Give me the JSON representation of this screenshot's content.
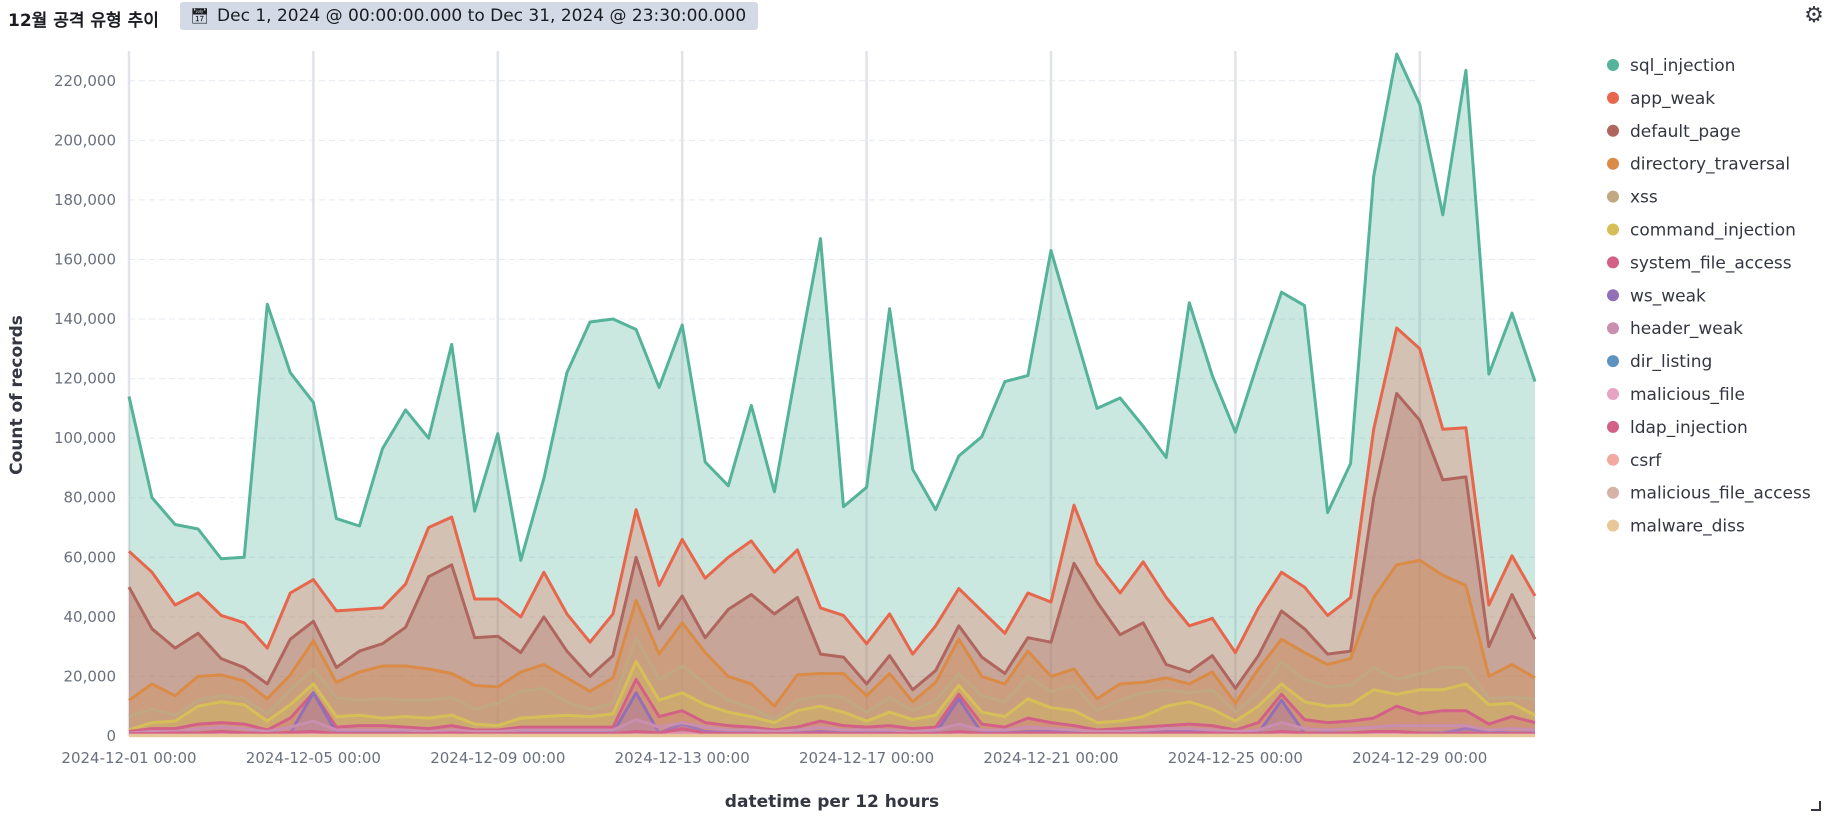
{
  "header": {
    "title": "12월 공격 유형 추이",
    "time_range": "Dec 1, 2024 @ 00:00:00.000 to Dec 31, 2024 @ 23:30:00.000",
    "calendar_icon": "calendar-icon",
    "settings_icon": "gear-icon"
  },
  "chart_data": {
    "type": "area",
    "stacked": false,
    "title": "",
    "xlabel": "datetime per 12 hours",
    "ylabel": "Count of records",
    "ylim": [
      0,
      230000
    ],
    "y_ticks": [
      "0",
      "20,000",
      "40,000",
      "60,000",
      "80,000",
      "100,000",
      "120,000",
      "140,000",
      "160,000",
      "180,000",
      "200,000",
      "220,000"
    ],
    "x_tick_labels": [
      "2024-12-01 00:00",
      "2024-12-05 00:00",
      "2024-12-09 00:00",
      "2024-12-13 00:00",
      "2024-12-17 00:00",
      "2024-12-21 00:00",
      "2024-12-25 00:00",
      "2024-12-29 00:00"
    ],
    "x_tick_index": [
      0,
      8,
      16,
      24,
      32,
      40,
      48,
      56
    ],
    "grid": true,
    "legend_position": "right",
    "series": [
      {
        "name": "sql_injection",
        "color": "#54b399",
        "values": [
          114000,
          80000,
          71000,
          69500,
          59500,
          60000,
          145000,
          122000,
          112000,
          73000,
          70500,
          96500,
          109500,
          100000,
          131500,
          75500,
          101500,
          59000,
          86500,
          122000,
          139000,
          140000,
          136500,
          117000,
          138000,
          92000,
          84000,
          111000,
          82000,
          125000,
          167000,
          77000,
          83500,
          143500,
          89500,
          76000,
          94000,
          100500,
          119000,
          121000,
          163000,
          136500,
          110000,
          113500,
          104000,
          93500,
          145500,
          121000,
          102000,
          126000,
          149000,
          144500,
          75000,
          91500,
          188000,
          229000,
          212000,
          175000,
          223500,
          121500,
          142000,
          119000
        ]
      },
      {
        "name": "app_weak",
        "color": "#e7664c",
        "values": [
          62000,
          55000,
          44000,
          48000,
          40500,
          38000,
          29500,
          48000,
          52500,
          42000,
          42500,
          43000,
          51000,
          70000,
          73500,
          46000,
          46000,
          40000,
          55000,
          41000,
          31500,
          41000,
          76000,
          50500,
          66000,
          53000,
          60000,
          65500,
          55000,
          62500,
          43000,
          40500,
          31000,
          41000,
          27500,
          37000,
          49500,
          42000,
          34500,
          48000,
          45000,
          77500,
          58000,
          48000,
          58500,
          46500,
          37000,
          39500,
          28000,
          43000,
          55000,
          50000,
          40500,
          46500,
          103000,
          137000,
          130000,
          103000,
          103500,
          44000,
          60500,
          47000
        ]
      },
      {
        "name": "default_page",
        "color": "#b0665e",
        "values": [
          50000,
          36000,
          29500,
          34500,
          26000,
          23000,
          17500,
          32500,
          38500,
          23000,
          28500,
          31000,
          36500,
          53500,
          57500,
          33000,
          33500,
          28000,
          40000,
          28500,
          20000,
          27000,
          60000,
          36000,
          47000,
          33000,
          42500,
          47500,
          41000,
          46500,
          27500,
          26500,
          17500,
          27000,
          15500,
          22000,
          37000,
          26500,
          21000,
          33000,
          31500,
          58000,
          45000,
          34000,
          38000,
          24000,
          21500,
          27000,
          16000,
          27000,
          42000,
          36000,
          27500,
          28500,
          80000,
          115000,
          106000,
          86000,
          87000,
          30000,
          47500,
          32500
        ]
      },
      {
        "name": "directory_traversal",
        "color": "#da8b45",
        "values": [
          12000,
          17500,
          13500,
          20000,
          20500,
          18500,
          12500,
          20500,
          32000,
          18000,
          21500,
          23500,
          23500,
          22500,
          21000,
          17000,
          16500,
          21500,
          24000,
          19500,
          15000,
          19500,
          45500,
          27500,
          38000,
          28000,
          20000,
          17500,
          10000,
          20500,
          21000,
          21000,
          13500,
          21000,
          11500,
          18000,
          32500,
          20000,
          17500,
          28500,
          20000,
          22500,
          12500,
          17500,
          18000,
          19500,
          17500,
          21500,
          11000,
          22500,
          32500,
          28000,
          24000,
          26000,
          46500,
          57500,
          59000,
          54000,
          50500,
          20000,
          24000,
          19500
        ]
      },
      {
        "name": "xss",
        "color": "#c0a882",
        "values": [
          6500,
          9000,
          7000,
          12000,
          13500,
          12500,
          7500,
          15500,
          22500,
          13000,
          12000,
          12500,
          12000,
          12000,
          13000,
          9000,
          11000,
          15000,
          16000,
          11500,
          9000,
          11000,
          33000,
          19000,
          23500,
          17500,
          12000,
          9500,
          5500,
          12000,
          13500,
          13000,
          8000,
          13000,
          8500,
          12000,
          21000,
          13500,
          11500,
          20000,
          15000,
          17000,
          8500,
          12000,
          14500,
          15500,
          14500,
          15500,
          8000,
          14500,
          25000,
          19000,
          16500,
          17000,
          23000,
          19000,
          21000,
          23000,
          23000,
          12500,
          13000,
          12500
        ]
      },
      {
        "name": "command_injection",
        "color": "#d6bf57",
        "values": [
          2000,
          4500,
          5000,
          10000,
          11500,
          10500,
          5000,
          10500,
          17500,
          6500,
          7000,
          6000,
          6500,
          6000,
          7000,
          4000,
          3500,
          6000,
          6500,
          7000,
          6500,
          7500,
          25000,
          12000,
          14500,
          10500,
          8000,
          6500,
          4500,
          8500,
          10000,
          8000,
          5000,
          8000,
          5500,
          7000,
          17000,
          8000,
          6500,
          12500,
          9500,
          8500,
          4500,
          5000,
          6500,
          10000,
          11500,
          9000,
          5000,
          10000,
          17500,
          11500,
          10000,
          10500,
          15500,
          14000,
          15500,
          15500,
          17500,
          10500,
          11000,
          7000
        ]
      },
      {
        "name": "system_file_access",
        "color": "#d36086",
        "values": [
          1500,
          2500,
          2500,
          4000,
          4500,
          4000,
          2000,
          6000,
          14500,
          3000,
          3500,
          3500,
          3000,
          2500,
          3500,
          2000,
          2000,
          3000,
          3000,
          3000,
          3000,
          3000,
          19000,
          6500,
          8500,
          4500,
          3500,
          3000,
          2000,
          3000,
          5000,
          3500,
          3000,
          3500,
          2500,
          3000,
          14000,
          4000,
          3000,
          6000,
          4500,
          3500,
          2000,
          2500,
          3000,
          3500,
          4000,
          3500,
          2000,
          4500,
          14000,
          5500,
          4500,
          5000,
          6000,
          10000,
          7500,
          8500,
          8500,
          4000,
          6500,
          4500
        ]
      },
      {
        "name": "ws_weak",
        "color": "#9170b8",
        "values": [
          500,
          500,
          500,
          1000,
          1500,
          1000,
          1000,
          1000,
          14500,
          1000,
          1000,
          1000,
          1000,
          1000,
          1500,
          1000,
          1000,
          1000,
          1000,
          1000,
          1000,
          1000,
          14500,
          1000,
          4000,
          1500,
          1000,
          1000,
          1000,
          1000,
          1500,
          1000,
          1000,
          1500,
          1000,
          1000,
          12500,
          1000,
          1000,
          1500,
          1500,
          1500,
          1000,
          1000,
          1000,
          1500,
          1500,
          1500,
          1000,
          1000,
          12000,
          1000,
          1000,
          1000,
          1000,
          1000,
          1000,
          1000,
          2500,
          1500,
          1000,
          1000
        ]
      },
      {
        "name": "header_weak",
        "color": "#ca8eae",
        "values": [
          1000,
          1500,
          1500,
          2500,
          3000,
          2500,
          1500,
          3000,
          5000,
          2000,
          2000,
          2000,
          2000,
          1500,
          2000,
          1500,
          1500,
          2000,
          2000,
          2000,
          2000,
          2000,
          5500,
          3000,
          4500,
          3000,
          2000,
          2000,
          1500,
          2000,
          3000,
          2000,
          2000,
          2000,
          1500,
          2000,
          4000,
          2000,
          2000,
          3000,
          2500,
          2000,
          1500,
          1500,
          2000,
          2500,
          2500,
          2000,
          1500,
          2000,
          4500,
          2500,
          2000,
          2500,
          3000,
          3500,
          3500,
          3500,
          3500,
          2000,
          2500,
          2000
        ]
      },
      {
        "name": "dir_listing",
        "color": "#6092c0",
        "values": [
          300,
          300,
          300,
          300,
          300,
          300,
          300,
          300,
          500,
          300,
          300,
          300,
          300,
          300,
          300,
          300,
          300,
          300,
          300,
          300,
          300,
          300,
          500,
          300,
          300,
          300,
          300,
          300,
          300,
          300,
          300,
          300,
          300,
          300,
          300,
          300,
          500,
          300,
          300,
          300,
          300,
          300,
          300,
          300,
          300,
          300,
          300,
          300,
          300,
          300,
          500,
          300,
          300,
          300,
          300,
          300,
          300,
          300,
          300,
          300,
          300,
          300
        ]
      },
      {
        "name": "malicious_file",
        "color": "#e7a4c1",
        "values": [
          500,
          500,
          500,
          500,
          500,
          500,
          500,
          500,
          1000,
          500,
          500,
          500,
          500,
          500,
          500,
          500,
          500,
          500,
          500,
          500,
          500,
          500,
          1000,
          500,
          1000,
          500,
          500,
          500,
          500,
          500,
          500,
          500,
          500,
          500,
          500,
          500,
          1000,
          500,
          500,
          500,
          500,
          500,
          500,
          500,
          500,
          500,
          500,
          500,
          500,
          500,
          1000,
          500,
          500,
          500,
          500,
          500,
          500,
          500,
          500,
          500,
          500,
          500
        ]
      },
      {
        "name": "ldap_injection",
        "color": "#d36086",
        "values": [
          800,
          800,
          1000,
          1000,
          1500,
          1000,
          800,
          1200,
          1500,
          800,
          800,
          800,
          800,
          800,
          1000,
          800,
          800,
          800,
          800,
          800,
          800,
          800,
          1500,
          1000,
          2500,
          1000,
          800,
          800,
          800,
          800,
          1000,
          800,
          800,
          800,
          800,
          800,
          1500,
          800,
          800,
          1000,
          1000,
          800,
          800,
          800,
          800,
          1000,
          1000,
          1000,
          800,
          800,
          1500,
          1000,
          800,
          1000,
          1500,
          1500,
          1000,
          800,
          1000,
          800,
          800,
          800
        ]
      },
      {
        "name": "csrf",
        "color": "#f1a9a0",
        "values": [
          300,
          300,
          300,
          300,
          300,
          300,
          300,
          300,
          300,
          300,
          300,
          300,
          300,
          300,
          300,
          300,
          300,
          300,
          300,
          300,
          300,
          300,
          300,
          300,
          300,
          300,
          300,
          300,
          300,
          300,
          300,
          300,
          300,
          300,
          300,
          300,
          300,
          300,
          300,
          300,
          300,
          300,
          300,
          300,
          300,
          300,
          300,
          300,
          300,
          300,
          300,
          300,
          300,
          300,
          300,
          300,
          300,
          300,
          300,
          300,
          300,
          300
        ]
      },
      {
        "name": "malicious_file_access",
        "color": "#d5b1a6",
        "values": [
          200,
          200,
          200,
          200,
          200,
          200,
          200,
          200,
          200,
          200,
          200,
          200,
          200,
          200,
          200,
          200,
          200,
          200,
          200,
          200,
          200,
          200,
          200,
          200,
          200,
          200,
          200,
          200,
          200,
          200,
          200,
          200,
          200,
          200,
          200,
          200,
          200,
          200,
          200,
          200,
          200,
          200,
          200,
          200,
          200,
          200,
          200,
          200,
          200,
          200,
          200,
          200,
          200,
          200,
          200,
          200,
          200,
          200,
          200,
          200,
          200,
          200
        ]
      },
      {
        "name": "malware_diss",
        "color": "#eac799",
        "values": [
          100,
          100,
          100,
          100,
          100,
          100,
          100,
          100,
          100,
          100,
          100,
          100,
          100,
          100,
          100,
          100,
          100,
          100,
          100,
          100,
          100,
          100,
          100,
          100,
          100,
          100,
          100,
          100,
          100,
          100,
          100,
          100,
          100,
          100,
          100,
          100,
          100,
          100,
          100,
          100,
          100,
          100,
          100,
          100,
          100,
          100,
          100,
          100,
          100,
          100,
          100,
          100,
          100,
          100,
          100,
          100,
          100,
          100,
          100,
          100,
          100,
          100
        ]
      }
    ]
  }
}
